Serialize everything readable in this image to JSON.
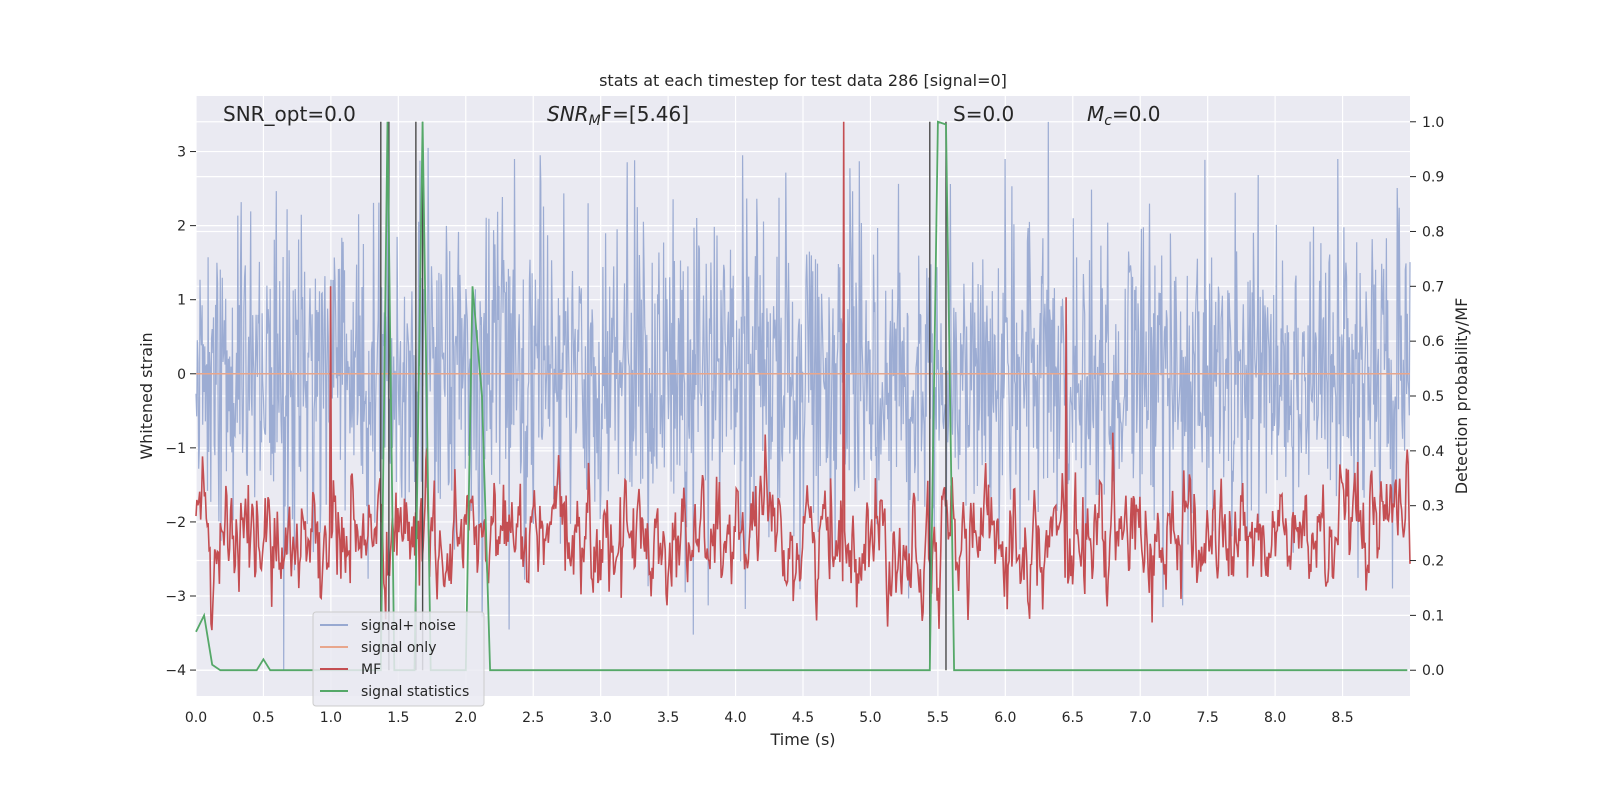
{
  "chart_data": {
    "type": "line",
    "title": "stats at each timestep for test data 286 [signal=0]",
    "xlabel": "Time (s)",
    "ylabel": "Whitened strain",
    "y2label": "Detection probability/MF",
    "xlim": [
      0,
      9.0
    ],
    "ylim": [
      -4.35,
      3.75
    ],
    "y2lim": [
      -0.047,
      1.047
    ],
    "x_ticks": [
      "0.0",
      "0.5",
      "1.0",
      "1.5",
      "2.0",
      "2.5",
      "3.0",
      "3.5",
      "4.0",
      "4.5",
      "5.0",
      "5.5",
      "6.0",
      "6.5",
      "7.0",
      "7.5",
      "8.0",
      "8.5"
    ],
    "y_ticks": [
      "3",
      "2",
      "1",
      "0",
      "−1",
      "−2",
      "−3",
      "−4"
    ],
    "y2_ticks": [
      "1.0",
      "0.9",
      "0.8",
      "0.7",
      "0.6",
      "0.5",
      "0.4",
      "0.3",
      "0.2",
      "0.1",
      "0.0"
    ],
    "grid": true,
    "annotations": {
      "snr_opt": "SNR_opt=0.0",
      "snr_mf_main": "SNR",
      "snr_mf_sub": "M",
      "snr_mf_rest": "F=[5.46]",
      "s": "S=0.0",
      "mc_main": "M",
      "mc_sub": "c",
      "mc_rest": "=0.0"
    },
    "legend": {
      "placement": "lower-left",
      "entries": [
        "signal+ noise",
        "signal only",
        "MF",
        "signal statistics"
      ]
    },
    "colors": {
      "noise": "#98a9d1",
      "signal_only": "#e8a68c",
      "mf": "#c44e52",
      "stats": "#55a868",
      "vline": "#4a4a4a",
      "background": "#eaeaf2"
    },
    "series": [
      {
        "name": "signal+ noise",
        "y_range_approx": [
          -4.0,
          3.4
        ],
        "typical_band": [
          -2.0,
          2.0
        ],
        "notable_peaks": [
          [
            0.65,
            -4.0
          ],
          [
            1.42,
            3.05
          ],
          [
            1.72,
            3.05
          ],
          [
            2.55,
            2.95
          ],
          [
            4.05,
            2.95
          ],
          [
            6.32,
            3.4
          ],
          [
            7.17,
            -3.15
          ]
        ]
      },
      {
        "name": "signal only",
        "y_constant": 0.0
      },
      {
        "name": "MF",
        "typical_range": [
          0.0,
          0.6
        ],
        "notable_peaks": [
          [
            4.8,
            1.0
          ],
          [
            1.0,
            0.7
          ],
          [
            6.45,
            0.68
          ]
        ]
      },
      {
        "name": "signal statistics",
        "points": [
          [
            0.0,
            0.07
          ],
          [
            0.06,
            0.1
          ],
          [
            0.12,
            0.01
          ],
          [
            0.18,
            0.0
          ],
          [
            0.45,
            0.0
          ],
          [
            0.5,
            0.02
          ],
          [
            0.55,
            0.0
          ],
          [
            1.37,
            0.0
          ],
          [
            1.42,
            1.0
          ],
          [
            1.47,
            0.0
          ],
          [
            1.62,
            0.0
          ],
          [
            1.68,
            1.0
          ],
          [
            1.74,
            0.0
          ],
          [
            2.0,
            0.0
          ],
          [
            2.05,
            0.7
          ],
          [
            2.12,
            0.5
          ],
          [
            2.18,
            0.0
          ],
          [
            5.44,
            0.0
          ],
          [
            5.5,
            1.0
          ],
          [
            5.56,
            0.995
          ],
          [
            5.62,
            0.0
          ],
          [
            8.98,
            0.0
          ]
        ]
      }
    ],
    "vertical_lines_x": [
      1.37,
      1.43,
      1.63,
      1.68,
      5.44,
      5.56
    ]
  }
}
